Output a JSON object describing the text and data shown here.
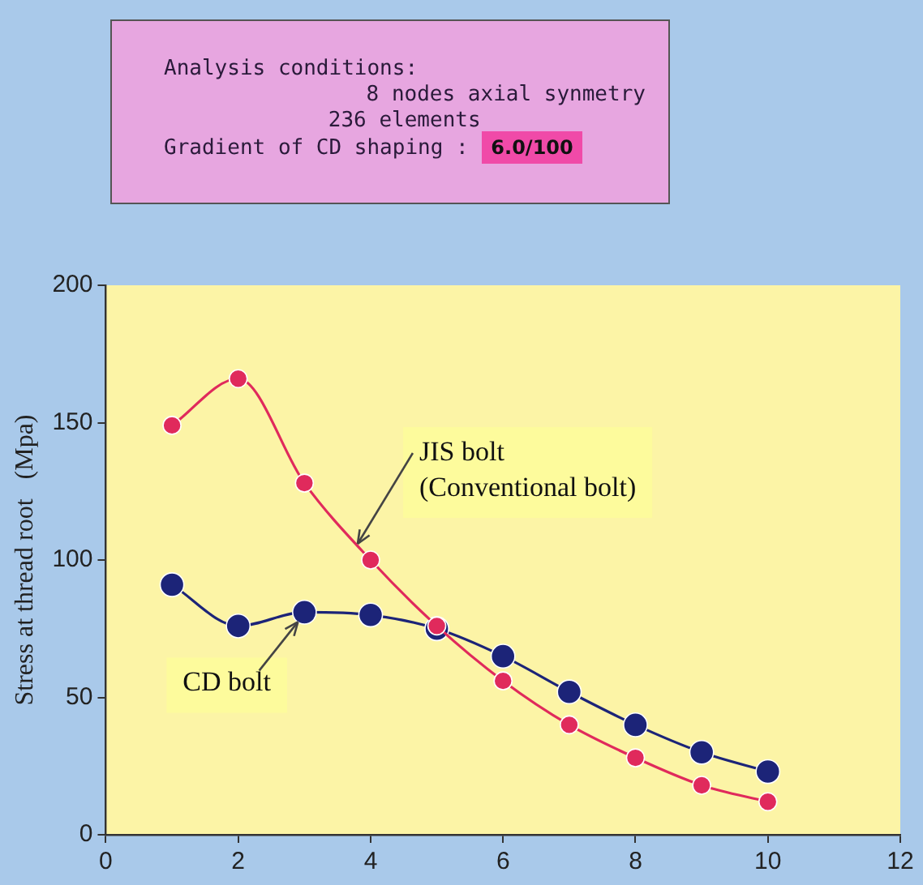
{
  "chart_data": {
    "type": "line",
    "ylabel": "Stress at thread root   (Mpa)",
    "annotations": [
      "Analysis conditions:",
      "8 nodes axial synmetry",
      "236 elements",
      "Gradient of CD shaping :",
      "6.0/100"
    ],
    "x": [
      1,
      2,
      3,
      4,
      5,
      6,
      7,
      8,
      9,
      10
    ],
    "series": [
      {
        "name": "JIS bolt\n(Conventional bolt)",
        "color": "#e02a5c",
        "values": [
          149,
          166,
          128,
          100,
          76,
          56,
          40,
          28,
          18,
          12
        ]
      },
      {
        "name": "CD bolt",
        "color": "#1c2478",
        "values": [
          91,
          76,
          81,
          80,
          75,
          65,
          52,
          40,
          30,
          23
        ]
      }
    ],
    "xlim": [
      0,
      12
    ],
    "xticks": [
      0,
      2,
      4,
      6,
      8,
      10,
      12
    ],
    "ylim": [
      0,
      200
    ],
    "yticks": [
      0,
      50,
      100,
      150,
      200
    ],
    "grid": false,
    "legend": false,
    "marker": "circle",
    "line_style": "solid"
  }
}
